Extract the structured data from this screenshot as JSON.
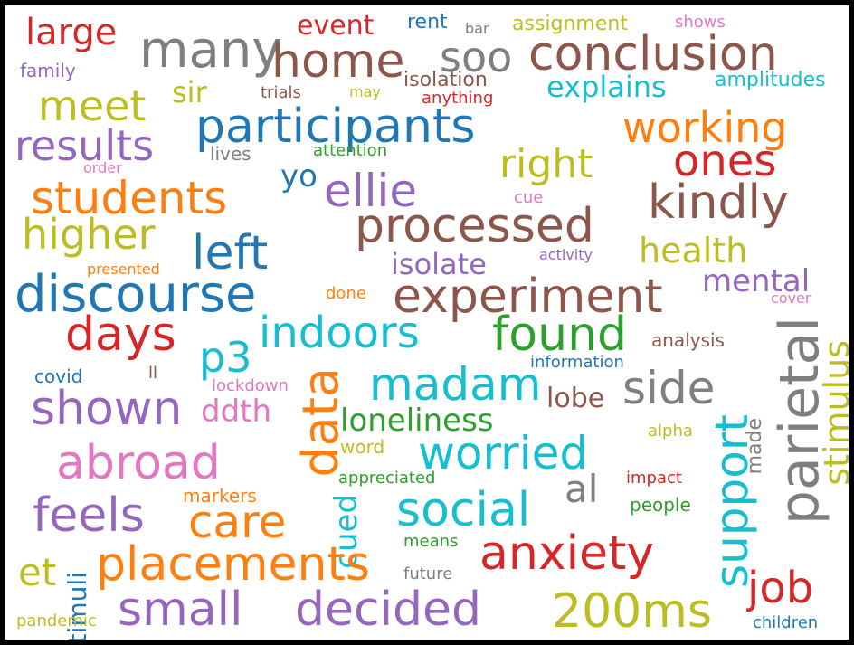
{
  "colors": {
    "background": "#ffffff",
    "frame": "#000000",
    "palette": [
      "#1f77b4",
      "#ff7f0e",
      "#2ca02c",
      "#d62728",
      "#9467bd",
      "#8c564b",
      "#e377c2",
      "#7f7f7f",
      "#bcbd22",
      "#17becf"
    ]
  },
  "words": [
    {
      "text": "large",
      "color": "#d62728"
    },
    {
      "text": "event",
      "color": "#d62728"
    },
    {
      "text": "rent",
      "color": "#1f77b4"
    },
    {
      "text": "bar",
      "color": "#7f7f7f"
    },
    {
      "text": "assignment",
      "color": "#bcbd22"
    },
    {
      "text": "shows",
      "color": "#e377c2"
    },
    {
      "text": "many",
      "color": "#7f7f7f"
    },
    {
      "text": "home",
      "color": "#8c564b"
    },
    {
      "text": "soo",
      "color": "#7f7f7f"
    },
    {
      "text": "conclusion",
      "color": "#8c564b"
    },
    {
      "text": "family",
      "color": "#9467bd"
    },
    {
      "text": "isolation",
      "color": "#8c564b"
    },
    {
      "text": "amplitudes",
      "color": "#17becf"
    },
    {
      "text": "meet",
      "color": "#bcbd22"
    },
    {
      "text": "sir",
      "color": "#bcbd22"
    },
    {
      "text": "trials",
      "color": "#8c564b"
    },
    {
      "text": "may",
      "color": "#bcbd22"
    },
    {
      "text": "anything",
      "color": "#d62728"
    },
    {
      "text": "explains",
      "color": "#17becf"
    },
    {
      "text": "participants",
      "color": "#1f77b4"
    },
    {
      "text": "working",
      "color": "#ff7f0e"
    },
    {
      "text": "results",
      "color": "#9467bd"
    },
    {
      "text": "attention",
      "color": "#2ca02c"
    },
    {
      "text": "lives",
      "color": "#7f7f7f"
    },
    {
      "text": "right",
      "color": "#bcbd22"
    },
    {
      "text": "ones",
      "color": "#d62728"
    },
    {
      "text": "order",
      "color": "#e377c2"
    },
    {
      "text": "yo",
      "color": "#1f77b4"
    },
    {
      "text": "students",
      "color": "#ff7f0e"
    },
    {
      "text": "ellie",
      "color": "#9467bd"
    },
    {
      "text": "cue",
      "color": "#e377c2"
    },
    {
      "text": "kindly",
      "color": "#8c564b"
    },
    {
      "text": "higher",
      "color": "#bcbd22"
    },
    {
      "text": "processed",
      "color": "#8c564b"
    },
    {
      "text": "left",
      "color": "#1f77b4"
    },
    {
      "text": "activity",
      "color": "#9467bd"
    },
    {
      "text": "health",
      "color": "#bcbd22"
    },
    {
      "text": "isolate",
      "color": "#9467bd"
    },
    {
      "text": "presented",
      "color": "#ff7f0e"
    },
    {
      "text": "mental",
      "color": "#9467bd"
    },
    {
      "text": "discourse",
      "color": "#1f77b4"
    },
    {
      "text": "experiment",
      "color": "#8c564b"
    },
    {
      "text": "done",
      "color": "#ff7f0e"
    },
    {
      "text": "cover",
      "color": "#e377c2"
    },
    {
      "text": "days",
      "color": "#d62728"
    },
    {
      "text": "indoors",
      "color": "#17becf"
    },
    {
      "text": "found",
      "color": "#2ca02c"
    },
    {
      "text": "parietal",
      "color": "#7f7f7f"
    },
    {
      "text": "p3",
      "color": "#17becf"
    },
    {
      "text": "analysis",
      "color": "#8c564b"
    },
    {
      "text": "stimulus",
      "color": "#bcbd22"
    },
    {
      "text": "covid",
      "color": "#1f77b4"
    },
    {
      "text": "ll",
      "color": "#8c564b"
    },
    {
      "text": "information",
      "color": "#1f77b4"
    },
    {
      "text": "lockdown",
      "color": "#e377c2"
    },
    {
      "text": "madam",
      "color": "#17becf"
    },
    {
      "text": "side",
      "color": "#7f7f7f"
    },
    {
      "text": "data",
      "color": "#ff7f0e"
    },
    {
      "text": "shown",
      "color": "#9467bd"
    },
    {
      "text": "ddth",
      "color": "#e377c2"
    },
    {
      "text": "lobe",
      "color": "#8c564b"
    },
    {
      "text": "loneliness",
      "color": "#2ca02c"
    },
    {
      "text": "alpha",
      "color": "#bcbd22"
    },
    {
      "text": "made",
      "color": "#7f7f7f"
    },
    {
      "text": "support",
      "color": "#17becf"
    },
    {
      "text": "worried",
      "color": "#17becf"
    },
    {
      "text": "abroad",
      "color": "#e377c2"
    },
    {
      "text": "word",
      "color": "#bcbd22"
    },
    {
      "text": "appreciated",
      "color": "#2ca02c"
    },
    {
      "text": "al",
      "color": "#7f7f7f"
    },
    {
      "text": "impact",
      "color": "#d62728"
    },
    {
      "text": "markers",
      "color": "#ff7f0e"
    },
    {
      "text": "people",
      "color": "#2ca02c"
    },
    {
      "text": "feels",
      "color": "#9467bd"
    },
    {
      "text": "care",
      "color": "#ff7f0e"
    },
    {
      "text": "cued",
      "color": "#17becf"
    },
    {
      "text": "social",
      "color": "#17becf"
    },
    {
      "text": "et",
      "color": "#bcbd22"
    },
    {
      "text": "placements",
      "color": "#ff7f0e"
    },
    {
      "text": "means",
      "color": "#2ca02c"
    },
    {
      "text": "anxiety",
      "color": "#d62728"
    },
    {
      "text": "job",
      "color": "#d62728"
    },
    {
      "text": "stimuli",
      "color": "#1f77b4"
    },
    {
      "text": "future",
      "color": "#7f7f7f"
    },
    {
      "text": "small",
      "color": "#9467bd"
    },
    {
      "text": "decided",
      "color": "#9467bd"
    },
    {
      "text": "200ms",
      "color": "#bcbd22"
    },
    {
      "text": "pandemic",
      "color": "#bcbd22"
    },
    {
      "text": "children",
      "color": "#1f77b4"
    }
  ]
}
